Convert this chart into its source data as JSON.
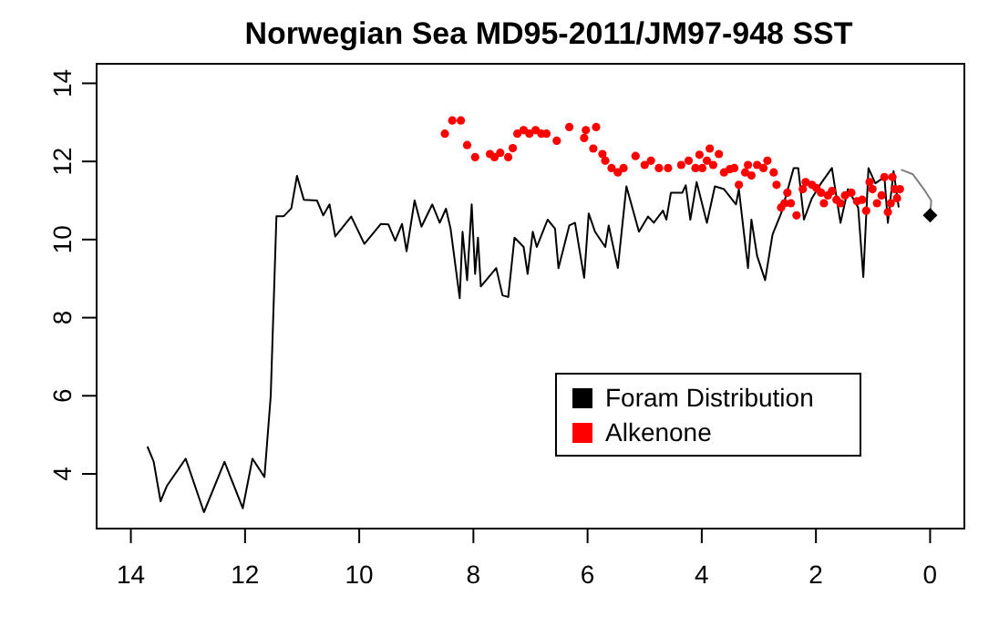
{
  "chart_data": {
    "type": "line",
    "title": "Norwegian Sea MD95-2011/JM97-948 SST",
    "xlim": [
      14.6,
      -0.6
    ],
    "xticks": [
      14,
      12,
      10,
      8,
      6,
      4,
      2,
      0
    ],
    "ylim": [
      2.6,
      14.5
    ],
    "yticks": [
      4,
      6,
      8,
      10,
      12,
      14
    ],
    "grid": false,
    "legend": "bottom right",
    "series": [
      {
        "name": "Foram Distribution",
        "color": "#000000",
        "x": [
          13.71,
          13.6,
          13.48,
          13.37,
          13.04,
          12.72,
          12.36,
          12.04,
          11.87,
          11.66,
          11.55,
          11.45,
          11.32,
          11.19,
          11.09,
          10.97,
          10.74,
          10.63,
          10.52,
          10.42,
          10.14,
          9.91,
          9.62,
          9.49,
          9.37,
          9.25,
          9.17,
          9.03,
          8.91,
          8.72,
          8.59,
          8.48,
          8.4,
          8.24,
          8.19,
          8.11,
          8.03,
          7.97,
          7.92,
          7.87,
          7.6,
          7.49,
          7.39,
          7.28,
          7.12,
          7.05,
          6.96,
          6.89,
          6.7,
          6.57,
          6.51,
          6.32,
          6.22,
          6.06,
          5.98,
          5.87,
          5.69,
          5.63,
          5.47,
          5.32,
          5.1,
          4.94,
          4.84,
          4.68,
          4.62,
          4.54,
          4.34,
          4.28,
          4.2,
          4.09,
          3.91,
          3.77,
          3.61,
          3.4,
          3.35,
          3.19,
          3.13,
          3.03,
          2.89,
          2.76,
          2.61,
          2.39,
          2.31,
          2.21,
          2.07,
          1.91,
          1.72,
          1.57,
          1.44,
          1.26,
          1.17,
          1.08,
          0.96,
          0.8,
          0.74,
          0.64,
          0.55
        ],
        "values": [
          4.7,
          4.31,
          3.3,
          3.69,
          4.39,
          3.02,
          4.31,
          3.12,
          4.39,
          3.92,
          6.0,
          10.6,
          10.6,
          10.8,
          11.63,
          11.02,
          11.0,
          10.62,
          10.9,
          10.08,
          10.59,
          9.89,
          10.4,
          10.39,
          9.97,
          10.4,
          9.7,
          11.0,
          10.33,
          10.9,
          10.43,
          10.79,
          10.28,
          8.5,
          10.2,
          8.96,
          10.9,
          9.12,
          10.05,
          8.8,
          9.27,
          8.57,
          8.53,
          10.05,
          9.81,
          9.12,
          10.2,
          9.81,
          10.51,
          10.28,
          9.27,
          10.36,
          10.43,
          9.02,
          10.67,
          10.2,
          9.81,
          10.36,
          9.27,
          11.36,
          10.2,
          10.59,
          10.43,
          10.74,
          10.51,
          11.2,
          11.2,
          11.39,
          10.51,
          11.47,
          10.43,
          11.36,
          11.29,
          10.9,
          11.29,
          9.27,
          10.51,
          9.58,
          8.96,
          10.13,
          10.67,
          11.83,
          11.83,
          10.51,
          11.06,
          11.44,
          11.83,
          10.43,
          11.29,
          10.82,
          9.04,
          11.83,
          11.44,
          11.6,
          10.43,
          11.75,
          10.82
        ]
      },
      {
        "color": "#808080",
        "x": [
          0.51,
          0.3,
          0.11,
          -0.02,
          0
        ],
        "values": [
          11.79,
          11.67,
          11.29,
          11.0,
          10.62
        ]
      },
      {
        "type": "scatter",
        "marker": "diamond",
        "color": "#000000",
        "x": [
          0
        ],
        "values": [
          10.62
        ]
      },
      {
        "name": "Alkenone",
        "type": "scatter",
        "marker": "circle",
        "color": "#ff0000",
        "x": [
          8.5,
          8.37,
          8.22,
          8.11,
          7.97,
          7.71,
          7.63,
          7.53,
          7.39,
          7.31,
          7.23,
          7.12,
          7.02,
          6.91,
          6.81,
          6.72,
          6.54,
          6.32,
          6.06,
          6.03,
          5.85,
          5.9,
          5.74,
          5.69,
          5.58,
          5.47,
          5.37,
          5.16,
          5.0,
          4.89,
          4.75,
          4.59,
          4.36,
          4.23,
          4.11,
          4.04,
          3.99,
          3.91,
          3.86,
          3.8,
          3.7,
          3.61,
          3.51,
          3.43,
          3.35,
          3.24,
          3.19,
          3.13,
          3.03,
          2.92,
          2.85,
          2.74,
          2.69,
          2.61,
          2.55,
          2.5,
          2.44,
          2.34,
          2.23,
          2.18,
          2.07,
          1.99,
          1.91,
          1.86,
          1.79,
          1.72,
          1.64,
          1.57,
          1.49,
          1.38,
          1.28,
          1.19,
          1.12,
          1.06,
          1.01,
          0.93,
          0.85,
          0.8,
          0.74,
          0.69,
          0.66,
          0.62,
          0.58,
          0.53
        ],
        "values": [
          12.71,
          13.05,
          13.05,
          12.42,
          12.11,
          12.19,
          12.11,
          12.22,
          12.11,
          12.34,
          12.71,
          12.8,
          12.71,
          12.8,
          12.71,
          12.71,
          12.53,
          12.88,
          12.6,
          12.8,
          12.88,
          12.33,
          12.19,
          12.02,
          11.83,
          11.72,
          11.83,
          12.14,
          11.91,
          12.02,
          11.83,
          11.83,
          11.91,
          12.02,
          11.83,
          12.17,
          11.83,
          12.02,
          12.33,
          11.91,
          12.19,
          11.72,
          11.8,
          11.83,
          11.4,
          11.72,
          11.91,
          11.64,
          11.91,
          11.83,
          12.02,
          11.72,
          11.4,
          10.82,
          10.93,
          11.2,
          10.93,
          10.62,
          11.29,
          11.47,
          11.4,
          11.32,
          11.2,
          10.93,
          11.13,
          11.24,
          11.02,
          10.93,
          11.13,
          11.2,
          10.98,
          11.02,
          10.74,
          11.47,
          11.29,
          10.93,
          11.13,
          11.6,
          10.7,
          10.93,
          11.6,
          11.29,
          11.06,
          11.29
        ]
      }
    ]
  }
}
